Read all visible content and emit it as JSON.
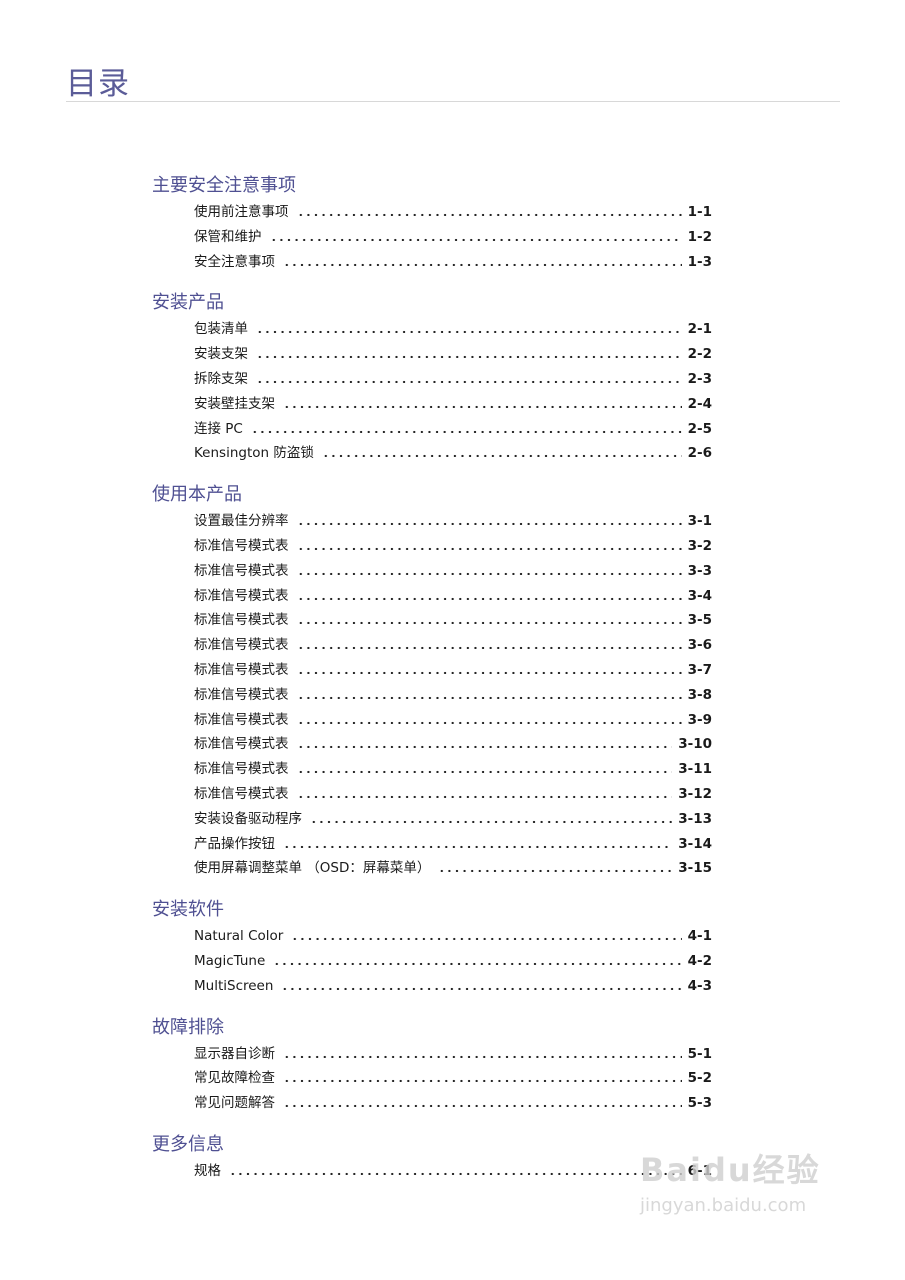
{
  "header": {
    "title": "目录"
  },
  "sections": [
    {
      "title": "主要安全注意事项",
      "entries": [
        {
          "label": "使用前注意事项",
          "page": "1-1"
        },
        {
          "label": "保管和维护",
          "page": "1-2"
        },
        {
          "label": "安全注意事项",
          "page": "1-3"
        }
      ]
    },
    {
      "title": "安装产品",
      "entries": [
        {
          "label": "包装清单",
          "page": "2-1"
        },
        {
          "label": "安装支架",
          "page": "2-2"
        },
        {
          "label": "拆除支架",
          "page": "2-3"
        },
        {
          "label": "安装壁挂支架",
          "page": "2-4"
        },
        {
          "label": "连接 PC",
          "page": "2-5"
        },
        {
          "label": "Kensington 防盗锁",
          "page": "2-6"
        }
      ]
    },
    {
      "title": "使用本产品",
      "entries": [
        {
          "label": "设置最佳分辨率",
          "page": "3-1"
        },
        {
          "label": "标准信号模式表",
          "page": "3-2"
        },
        {
          "label": "标准信号模式表",
          "page": "3-3"
        },
        {
          "label": "标准信号模式表",
          "page": "3-4"
        },
        {
          "label": "标准信号模式表",
          "page": "3-5"
        },
        {
          "label": "标准信号模式表",
          "page": "3-6"
        },
        {
          "label": "标准信号模式表",
          "page": "3-7"
        },
        {
          "label": "标准信号模式表",
          "page": "3-8"
        },
        {
          "label": "标准信号模式表",
          "page": "3-9"
        },
        {
          "label": "标准信号模式表",
          "page": "3-10"
        },
        {
          "label": "标准信号模式表",
          "page": "3-11"
        },
        {
          "label": "标准信号模式表",
          "page": "3-12"
        },
        {
          "label": "安装设备驱动程序",
          "page": "3-13"
        },
        {
          "label": "产品操作按钮",
          "page": "3-14"
        },
        {
          "label": "使用屏幕调整菜单 （OSD：屏幕菜单）",
          "page": "3-15"
        }
      ]
    },
    {
      "title": "安装软件",
      "entries": [
        {
          "label": "Natural Color",
          "page": "4-1"
        },
        {
          "label": "MagicTune",
          "page": "4-2"
        },
        {
          "label": "MultiScreen",
          "page": "4-3"
        }
      ]
    },
    {
      "title": "故障排除",
      "entries": [
        {
          "label": "显示器自诊断",
          "page": "5-1"
        },
        {
          "label": "常见故障检查",
          "page": "5-2"
        },
        {
          "label": "常见问题解答",
          "page": "5-3"
        }
      ]
    },
    {
      "title": "更多信息",
      "entries": [
        {
          "label": "规格",
          "page": "6-1"
        }
      ]
    }
  ],
  "watermark": {
    "brand": "Baidu经验",
    "url": "jingyan.baidu.com"
  }
}
